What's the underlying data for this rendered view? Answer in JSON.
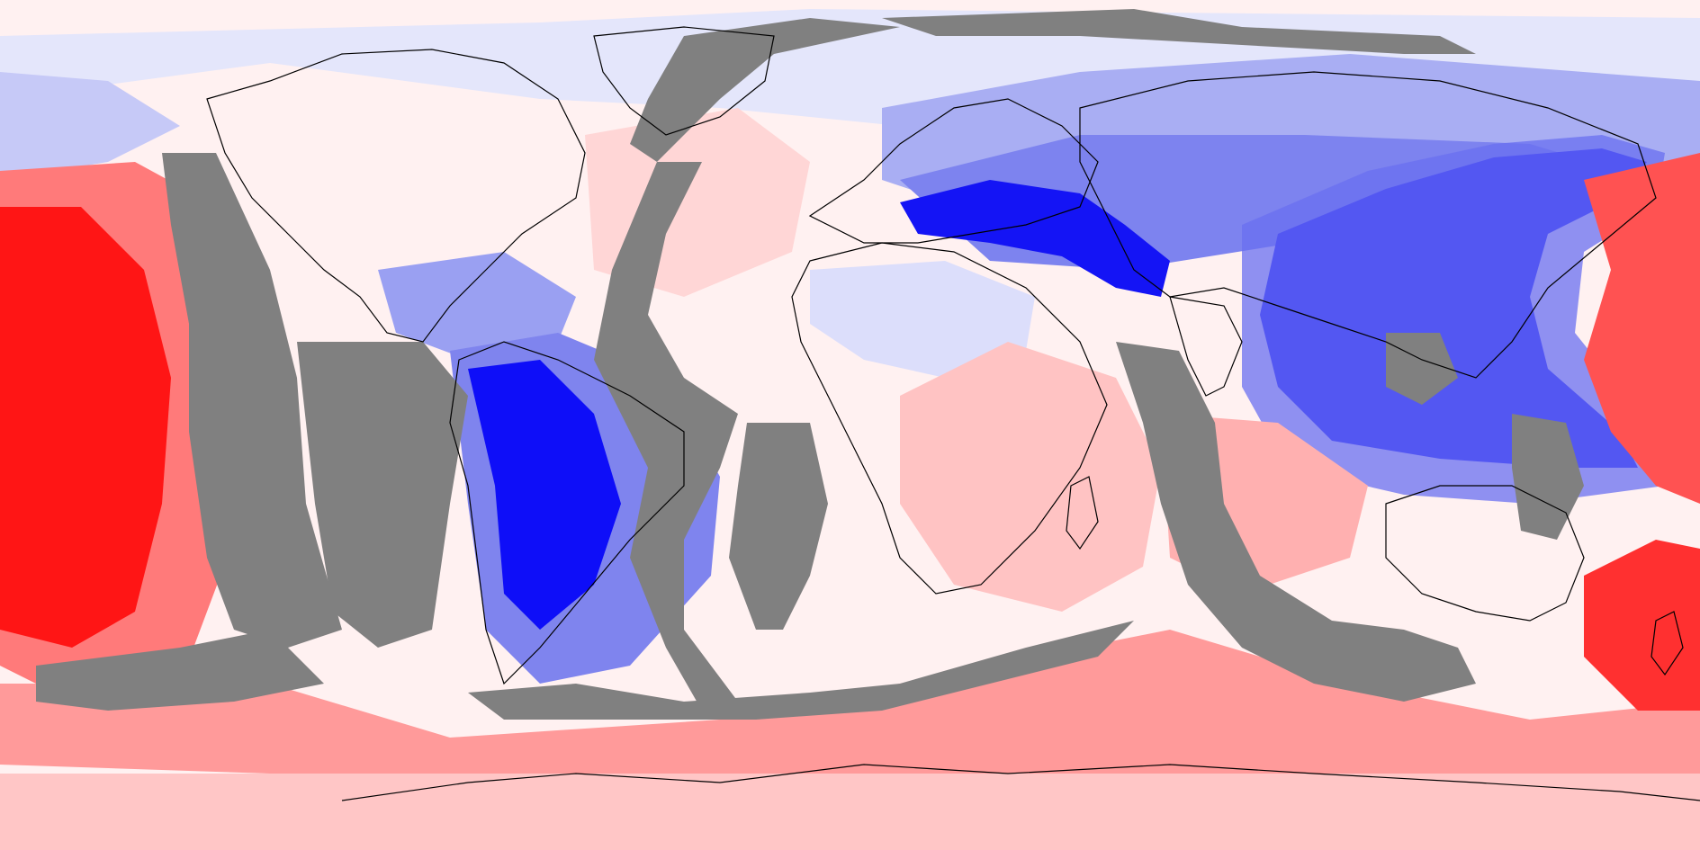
{
  "map": {
    "projection": "equirectangular",
    "field_type": "global diverging contour field",
    "colors": {
      "strong_negative": "#0000ff",
      "negative_mid": "#6e6ef5",
      "negative_light": "#c8c8fa",
      "neutral": "#ffffff",
      "positive_light": "#ffd0d0",
      "positive_mid": "#ff8c8c",
      "strong_positive": "#ff1010",
      "masked": "#808080",
      "coastline": "#000000"
    },
    "layers": [
      "contour-field",
      "masked-region-bands",
      "coastline-outlines"
    ],
    "regions": [
      {
        "name": "pacific-warm-anomaly",
        "sign": "positive"
      },
      {
        "name": "east-asia-cold-anomaly",
        "sign": "negative"
      },
      {
        "name": "south-america-cold-anomaly",
        "sign": "negative"
      },
      {
        "name": "mediterranean-cold-band",
        "sign": "negative"
      },
      {
        "name": "southern-ocean-warm-band",
        "sign": "positive"
      },
      {
        "name": "africa-weak-warm",
        "sign": "positive"
      }
    ]
  }
}
